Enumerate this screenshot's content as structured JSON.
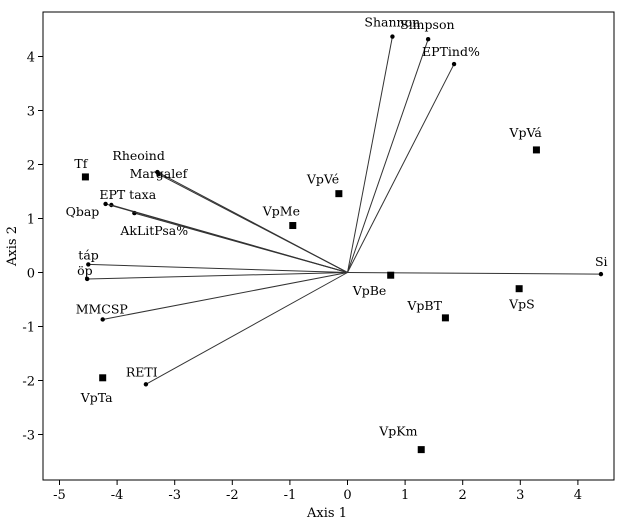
{
  "chart_data": {
    "type": "scatter",
    "title": "",
    "xlabel": "Axis 1",
    "ylabel": "Axis 2",
    "xlim": [
      -5.2,
      4.6
    ],
    "ylim": [
      -3.6,
      4.6
    ],
    "x_ticks": [
      -5,
      -4,
      -3,
      -2,
      -1,
      0,
      1,
      2,
      3,
      4
    ],
    "y_ticks": [
      -3,
      -2,
      -1,
      0,
      1,
      2,
      3,
      4
    ],
    "grid": false,
    "origin": [
      0,
      0
    ],
    "vectors": [
      {
        "label": "Shannon",
        "x": 0.78,
        "y": 4.37
      },
      {
        "label": "Simpson",
        "x": 1.4,
        "y": 4.32
      },
      {
        "label": "EPTind%",
        "x": 1.85,
        "y": 3.86
      },
      {
        "label": "Rheoind",
        "x": -3.3,
        "y": 1.86
      },
      {
        "label": "Margalef",
        "x": -3.28,
        "y": 1.82
      },
      {
        "label": "EPT taxa",
        "x": -4.1,
        "y": 1.25
      },
      {
        "label": "AkLitPsa%",
        "x": -3.7,
        "y": 1.1
      },
      {
        "label": "Qbap",
        "x": -4.2,
        "y": 1.27
      },
      {
        "label": "táp",
        "x": -4.5,
        "y": 0.15
      },
      {
        "label": "öp",
        "x": -4.52,
        "y": -0.12
      },
      {
        "label": "MMCSP",
        "x": -4.25,
        "y": -0.87
      },
      {
        "label": "RETI",
        "x": -3.5,
        "y": -2.07
      },
      {
        "label": "Si",
        "x": 4.4,
        "y": -0.03
      }
    ],
    "sites": [
      {
        "label": "Tf",
        "x": -4.55,
        "y": 1.77
      },
      {
        "label": "VpVé",
        "x": -0.15,
        "y": 1.46
      },
      {
        "label": "VpMe",
        "x": -0.95,
        "y": 0.87
      },
      {
        "label": "VpVá",
        "x": 3.28,
        "y": 2.27
      },
      {
        "label": "VpBe",
        "x": 0.75,
        "y": -0.05
      },
      {
        "label": "VpBT",
        "x": 1.7,
        "y": -0.84
      },
      {
        "label": "VpS",
        "x": 2.98,
        "y": -0.3
      },
      {
        "label": "VpTa",
        "x": -4.25,
        "y": -1.95
      },
      {
        "label": "VpKm",
        "x": 1.28,
        "y": -3.28
      }
    ]
  }
}
